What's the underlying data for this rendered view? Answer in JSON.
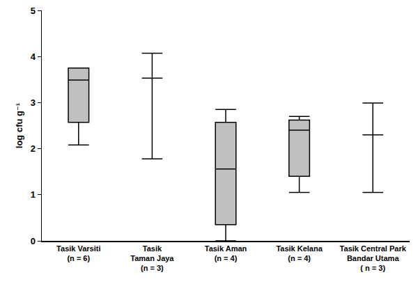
{
  "chart_data": {
    "type": "box",
    "y_label": "log cfu g⁻¹",
    "categories": [
      "Tasik Varsiti\n(n = 6)",
      "Tasik\nTaman Jaya\n(n = 3)",
      "Tasik Aman\n(n = 4)",
      "Tasik Kelana\n(n = 4)",
      "Tasik Central Park\nBandar Utama\n( n = 3)"
    ],
    "boxes": [
      {
        "min": 2.08,
        "q1": 2.57,
        "median": 3.49,
        "q3": 3.75,
        "max": 3.75
      },
      {
        "min": 1.78,
        "q1": 3.53,
        "median": 3.53,
        "q3": 3.53,
        "max": 4.07
      },
      {
        "min": 0,
        "q1": 0.35,
        "median": 1.56,
        "q3": 2.57,
        "max": 2.85
      },
      {
        "min": 1.05,
        "q1": 1.4,
        "median": 2.4,
        "q3": 2.62,
        "max": 2.7
      },
      {
        "min": 1.05,
        "q1": 2.3,
        "median": 2.3,
        "q3": 2.3,
        "max": 2.99
      }
    ],
    "color": "#c0c0c0",
    "ylim": [
      0,
      5
    ],
    "yticks": [
      0,
      1,
      2,
      3,
      4,
      5
    ],
    "grid": false
  }
}
